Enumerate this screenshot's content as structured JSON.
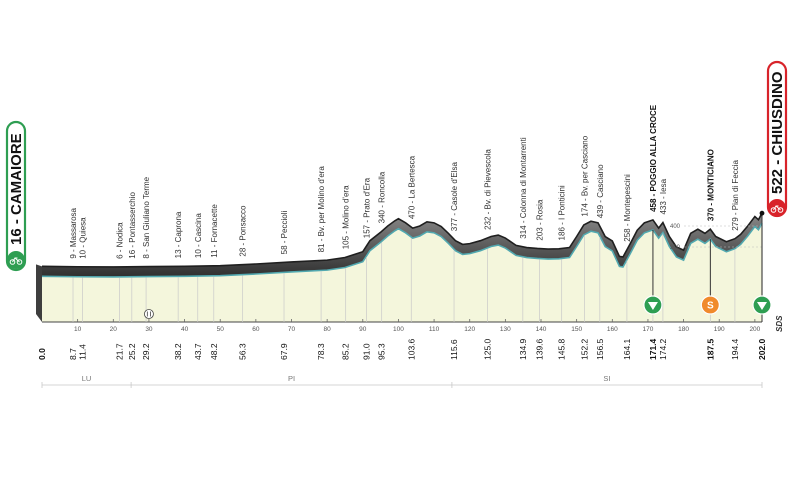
{
  "chart_data": {
    "type": "area",
    "distance_range": [
      0,
      202
    ],
    "distance_ticks": [
      10,
      20,
      30,
      40,
      50,
      60,
      70,
      80,
      90,
      100,
      110,
      120,
      130,
      140,
      150,
      160,
      170,
      180,
      190,
      200
    ],
    "altitude_ticks": [
      200,
      400
    ],
    "profile": [
      [
        0,
        16
      ],
      [
        10,
        12
      ],
      [
        20,
        10
      ],
      [
        30,
        14
      ],
      [
        40,
        16
      ],
      [
        50,
        22
      ],
      [
        60,
        38
      ],
      [
        70,
        58
      ],
      [
        80,
        75
      ],
      [
        85,
        100
      ],
      [
        90,
        155
      ],
      [
        92,
        260
      ],
      [
        95,
        340
      ],
      [
        97,
        400
      ],
      [
        99,
        450
      ],
      [
        100,
        470
      ],
      [
        102,
        430
      ],
      [
        104,
        380
      ],
      [
        106,
        400
      ],
      [
        108,
        440
      ],
      [
        110,
        430
      ],
      [
        112,
        395
      ],
      [
        114,
        330
      ],
      [
        116,
        260
      ],
      [
        118,
        225
      ],
      [
        120,
        232
      ],
      [
        123,
        260
      ],
      [
        126,
        300
      ],
      [
        128,
        314
      ],
      [
        130,
        285
      ],
      [
        133,
        215
      ],
      [
        136,
        195
      ],
      [
        139,
        186
      ],
      [
        142,
        180
      ],
      [
        145,
        183
      ],
      [
        148,
        195
      ],
      [
        150,
        300
      ],
      [
        152,
        410
      ],
      [
        154,
        445
      ],
      [
        156,
        430
      ],
      [
        158,
        300
      ],
      [
        160,
        258
      ],
      [
        162,
        110
      ],
      [
        163,
        105
      ],
      [
        165,
        230
      ],
      [
        167,
        360
      ],
      [
        169,
        430
      ],
      [
        171.4,
        458
      ],
      [
        173,
        380
      ],
      [
        174.2,
        433
      ],
      [
        176,
        300
      ],
      [
        178,
        200
      ],
      [
        180,
        170
      ],
      [
        182,
        330
      ],
      [
        184,
        370
      ],
      [
        186,
        330
      ],
      [
        187.5,
        370
      ],
      [
        189,
        300
      ],
      [
        192,
        250
      ],
      [
        194.4,
        279
      ],
      [
        196,
        320
      ],
      [
        198,
        400
      ],
      [
        200,
        490
      ],
      [
        201,
        460
      ],
      [
        202,
        522
      ]
    ],
    "start": {
      "distance": "0.0",
      "altitude": 16,
      "name": "CAMAIORE"
    },
    "finish": {
      "distance": "202.0",
      "altitude": 522,
      "name": "CHIUSDINO"
    },
    "start_label": "16 - CAMAIORE",
    "finish_label": "522 - CHIUSDINO",
    "waypoints": [
      {
        "km": 8.7,
        "km_label": "8.7",
        "label": "9 - Massarosa"
      },
      {
        "km": 11.4,
        "km_label": "11.4",
        "label": "10 - Quiesa"
      },
      {
        "km": 21.7,
        "km_label": "21.7",
        "label": "6 - Nodica"
      },
      {
        "km": 25.2,
        "km_label": "25.2",
        "label": "16 - Pontasserchio"
      },
      {
        "km": 29.2,
        "km_label": "29.2",
        "label": "8 - San Giuliano Terme"
      },
      {
        "km": 38.2,
        "km_label": "38.2",
        "label": "13 - Caprona"
      },
      {
        "km": 43.7,
        "km_label": "43.7",
        "label": "10 - Cascina"
      },
      {
        "km": 48.2,
        "km_label": "48.2",
        "label": "11 - Fornacette"
      },
      {
        "km": 56.3,
        "km_label": "56.3",
        "label": "28 - Ponsacco"
      },
      {
        "km": 67.9,
        "km_label": "67.9",
        "label": "58 - Peccioli"
      },
      {
        "km": 78.3,
        "km_label": "78.3",
        "label": "81 - Bv. per Molino d'era"
      },
      {
        "km": 85.2,
        "km_label": "85.2",
        "label": "105 - Molino d'era"
      },
      {
        "km": 91.0,
        "km_label": "91.0",
        "label": "157 - Prato d'Era"
      },
      {
        "km": 95.3,
        "km_label": "95.3",
        "label": "340 - Roncolla"
      },
      {
        "km": 103.6,
        "km_label": "103.6",
        "label": "470 - La Bertesca"
      },
      {
        "km": 115.6,
        "km_label": "115.6",
        "label": "377 - Casole d'Elsa"
      },
      {
        "km": 125.0,
        "km_label": "125.0",
        "label": "232 - Bv. di Pievescola"
      },
      {
        "km": 134.9,
        "km_label": "134.9",
        "label": "314 - Colonna di Montarrenti"
      },
      {
        "km": 139.6,
        "km_label": "139.6",
        "label": "203 - Rosia"
      },
      {
        "km": 145.8,
        "km_label": "145.8",
        "label": "186 - I Ponticini"
      },
      {
        "km": 152.2,
        "km_label": "152.2",
        "label": "174 - Bv. per Casciano"
      },
      {
        "km": 156.5,
        "km_label": "156.5",
        "label": "439 - Casciano"
      },
      {
        "km": 164.1,
        "km_label": "164.1",
        "label": "258 - Montepescini"
      },
      {
        "km": 171.4,
        "km_label": "171.4",
        "label": "458 - POGGIO ALLA CROCE",
        "bold": true
      },
      {
        "km": 174.2,
        "km_label": "174.2",
        "label": "433 - Iesa"
      },
      {
        "km": 187.5,
        "km_label": "187.5",
        "label": "370 - MONTICIANO",
        "bold": true
      },
      {
        "km": 194.4,
        "km_label": "194.4",
        "label": "279 - Pian di Feccia"
      }
    ],
    "bold_km": [
      "0.0",
      "171.4",
      "187.5",
      "202.0"
    ],
    "markers": [
      {
        "km": 171.4,
        "type": "gpm",
        "color": "#2e9e52"
      },
      {
        "km": 187.5,
        "type": "sprint",
        "color": "#f08a2c",
        "symbol": "S"
      },
      {
        "km": 202.0,
        "type": "gpm",
        "color": "#2e9e52"
      }
    ],
    "feed_zone_km": 30,
    "provinces": [
      {
        "name": "LU",
        "from": 0,
        "to": 25
      },
      {
        "name": "PI",
        "from": 25,
        "to": 115
      },
      {
        "name": "SI",
        "from": 115,
        "to": 202
      }
    ]
  },
  "brand": {
    "logo": "SDS"
  },
  "colors": {
    "profile_fill": "#f4f6dc",
    "profile_top": "#3e3e3e",
    "profile_line": "#52a9b0",
    "start_green": "#2e9e52",
    "finish_red": "#d8232a"
  }
}
